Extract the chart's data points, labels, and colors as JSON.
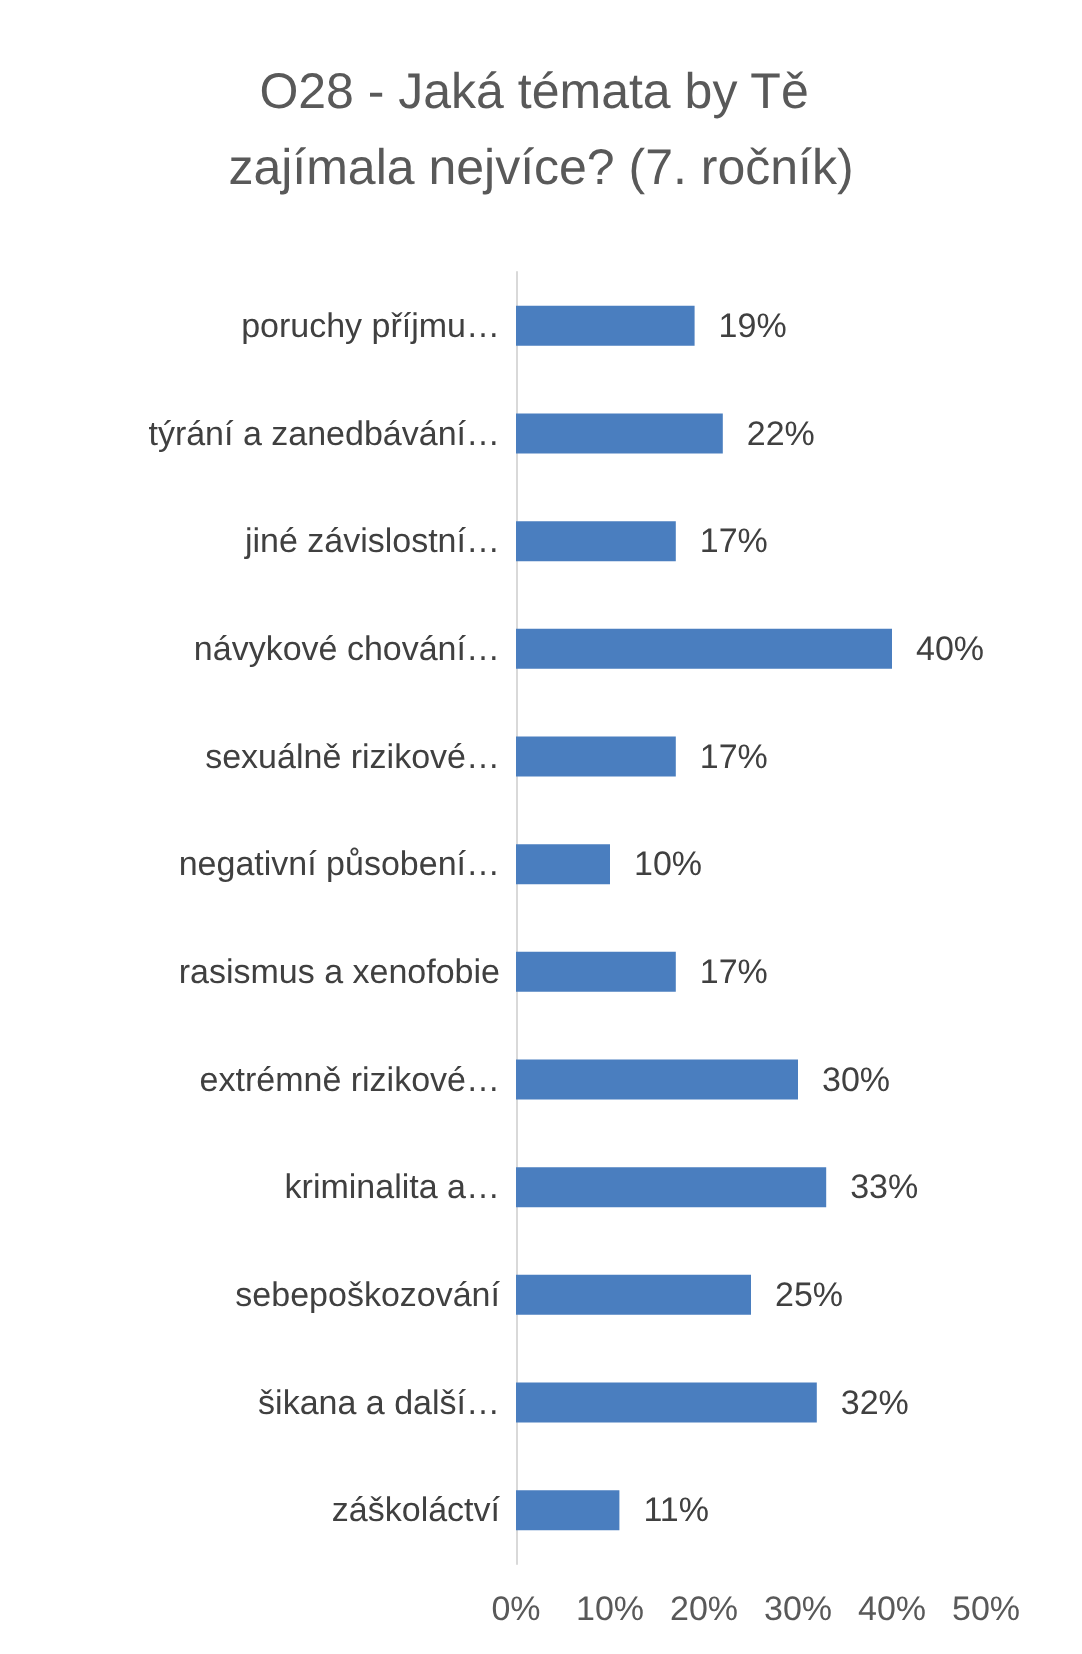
{
  "chart_data": {
    "type": "bar",
    "orientation": "horizontal",
    "title": "O28 - Jaká témata by Tě zajímala nejvíce? (7. ročník)",
    "categories": [
      "poruchy příjmu…",
      "týrání a zanedbávání…",
      "jiné závislostní…",
      "návykové chování…",
      "sexuálně rizikové…",
      "negativní působení…",
      "rasismus a xenofobie",
      "extrémně rizikové…",
      "kriminalita a…",
      "sebepoškozování",
      "šikana a další…",
      "záškoláctví"
    ],
    "values": [
      19,
      22,
      17,
      40,
      17,
      10,
      17,
      30,
      33,
      25,
      32,
      11
    ],
    "value_labels": [
      "19%",
      "22%",
      "17%",
      "40%",
      "17%",
      "10%",
      "17%",
      "30%",
      "33%",
      "25%",
      "32%",
      "11%"
    ],
    "color": "#4a7ebf",
    "xlim": [
      0,
      50
    ],
    "xticks": [
      {
        "value": 0,
        "label": "0%"
      },
      {
        "value": 10,
        "label": "10%"
      },
      {
        "value": 20,
        "label": "20%"
      },
      {
        "value": 30,
        "label": "30%"
      },
      {
        "value": 40,
        "label": "40%"
      },
      {
        "value": 50,
        "label": "50%"
      }
    ],
    "grid": false
  }
}
